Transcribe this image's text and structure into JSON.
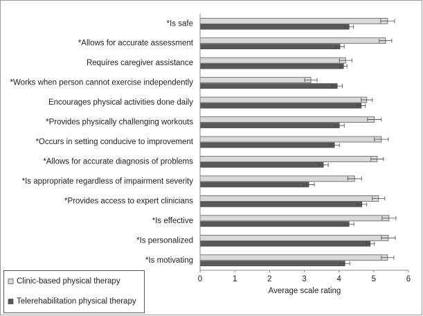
{
  "chart_data": {
    "type": "bar",
    "orientation": "horizontal",
    "x_label": "Average scale rating",
    "categories": [
      "*Is safe",
      "*Allows for accurate assessment",
      "Requires caregiver assistance",
      "*Works when person cannot exercise independently",
      "Encourages physical activities done daily",
      "*Provides physically challenging workouts",
      "*Occurs in setting conducive to improvement",
      "*Allows for accurate diagnosis of problems",
      "*Is appropriate regardless of impairment severity",
      "*Provides access to expert clinicians",
      "*Is effective",
      "*Is personalized",
      "*Is motivating"
    ],
    "series": [
      {
        "name": "Clinic-based physical therapy",
        "color": "#d9d9d9",
        "values": [
          5.4,
          5.34,
          4.19,
          3.19,
          4.8,
          5.02,
          5.22,
          5.1,
          4.45,
          5.14,
          5.44,
          5.42,
          5.4
        ],
        "errors": [
          0.2,
          0.18,
          0.18,
          0.18,
          0.16,
          0.2,
          0.2,
          0.18,
          0.2,
          0.18,
          0.2,
          0.2,
          0.18
        ]
      },
      {
        "name": "Telerehabilitation physical therapy",
        "color": "#595959",
        "values": [
          4.29,
          4.03,
          4.13,
          3.95,
          4.64,
          4.01,
          3.87,
          3.55,
          3.13,
          4.66,
          4.29,
          4.9,
          4.17
        ],
        "errors": [
          0.13,
          0.12,
          0.1,
          0.15,
          0.12,
          0.14,
          0.14,
          0.14,
          0.16,
          0.14,
          0.14,
          0.12,
          0.14
        ]
      }
    ],
    "xlim": [
      0,
      6
    ],
    "xticks": [
      0,
      1,
      2,
      3,
      4,
      5,
      6
    ],
    "legend": "bottom-left"
  }
}
